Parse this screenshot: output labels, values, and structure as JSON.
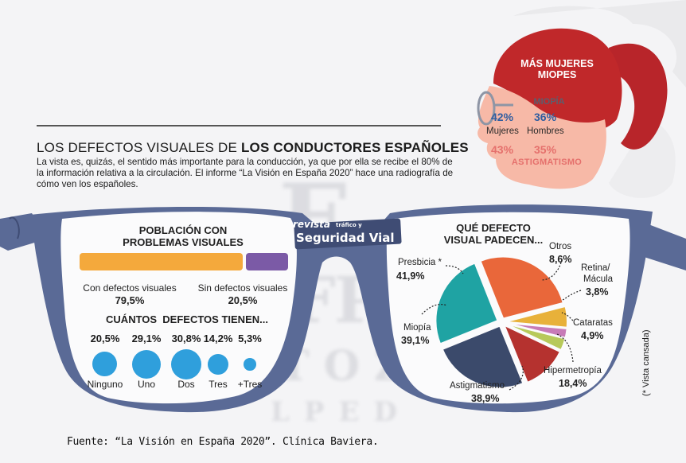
{
  "header": {
    "title_light": "LOS DEFECTOS VISUALES DE",
    "title_bold": "LOS CONDUCTORES ESPAÑOLES",
    "intro": "La vista es, quizás, el sentido más importante para la conducción, ya que por ella se recibe el 80% de la información relativa a la circulación. El informe “La Visión en España 2020” hace una radiografía de cómo ven los españoles."
  },
  "head": {
    "title_line1": "MÁS MUJERES",
    "title_line2": "MIOPES",
    "myopia_label": "MIOPÍA",
    "women_myopia": "42%",
    "men_myopia": "36%",
    "women_label": "Mujeres",
    "men_label": "Hombres",
    "women_astig": "43%",
    "men_astig": "35%",
    "astig_label": "ASTIGMATISMO"
  },
  "logo": {
    "line1": "revista",
    "line_small": "tráfico y",
    "line2": "Seguridad Vial"
  },
  "population": {
    "title_line1": "POBLACIÓN CON",
    "title_line2": "PROBLEMAS VISUALES",
    "with_label": "Con defectos visuales",
    "with_value": "79,5%",
    "without_label": "Sin defectos visuales",
    "without_value": "20,5%",
    "with_fraction": 0.795,
    "without_fraction": 0.205,
    "with_color": "#f4a93c",
    "without_color": "#7b5aa6"
  },
  "count": {
    "title": "CUÁNTOS  DEFECTOS TIENEN...",
    "items": [
      {
        "label": "Ninguno",
        "value": "20,5%",
        "pct": 20.5
      },
      {
        "label": "Uno",
        "value": "29,1%",
        "pct": 29.1
      },
      {
        "label": "Dos",
        "value": "30,8%",
        "pct": 30.8
      },
      {
        "label": "Tres",
        "value": "14,2%",
        "pct": 14.2
      },
      {
        "label": "+Tres",
        "value": "5,3%",
        "pct": 5.3
      }
    ],
    "color": "#2f9fdc"
  },
  "defects": {
    "title_line1": "QUÉ DEFECTO",
    "title_line2": "VISUAL PADECEN...",
    "items": [
      {
        "label": "Presbicia *",
        "value": "41,9%",
        "pct": 41.9,
        "color": "#e9673a"
      },
      {
        "label": "Otros",
        "value": "8,6%",
        "pct": 8.6,
        "color": "#e8b13a"
      },
      {
        "label": "Retina/",
        "label2": "Mácula",
        "value": "3,8%",
        "pct": 3.8,
        "color": "#c77bb7"
      },
      {
        "label": "Cataratas",
        "value": "4,9%",
        "pct": 4.9,
        "color": "#b7c95a"
      },
      {
        "label": "Hipermetropía",
        "value": "18,4%",
        "pct": 18.4,
        "color": "#b5322f"
      },
      {
        "label": "Astigmatismo",
        "value": "38,9%",
        "pct": 38.9,
        "color": "#3b4a6b"
      },
      {
        "label": "Miopía",
        "value": "39,1%",
        "pct": 39.1,
        "color": "#1fa3a3"
      }
    ]
  },
  "footer": {
    "source": "Fuente: “La Visión en España 2020”. Clínica Baviera.",
    "note": "(* Vista cansada)"
  },
  "colors": {
    "frame": "#5a6a96",
    "frame_dark": "#3f4c74",
    "hair": "#c0282a",
    "skin": "#f7b9a7",
    "accent_blue": "#2f9fdc"
  }
}
